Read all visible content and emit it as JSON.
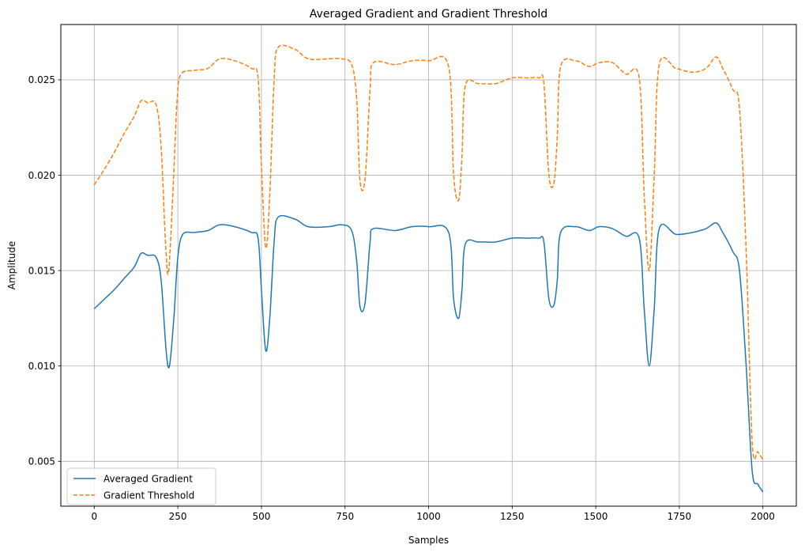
{
  "chart_data": {
    "type": "line",
    "title": "Averaged Gradient and Gradient Threshold",
    "xlabel": "Samples",
    "ylabel": "Amplitude",
    "xlim": [
      -100,
      2100
    ],
    "ylim": [
      0.00265,
      0.0279
    ],
    "xticks": [
      0,
      250,
      500,
      750,
      1000,
      1250,
      1500,
      1750,
      2000
    ],
    "xtick_labels": [
      "0",
      "250",
      "500",
      "750",
      "1000",
      "1250",
      "1500",
      "1750",
      "2000"
    ],
    "yticks": [
      0.005,
      0.01,
      0.015,
      0.02,
      0.025
    ],
    "ytick_labels": [
      "0.005",
      "0.010",
      "0.015",
      "0.020",
      "0.025"
    ],
    "grid": true,
    "legend_position": "lower-left",
    "series": [
      {
        "name": "Averaged Gradient",
        "color": "#1f77b4",
        "style": "solid",
        "points": [
          [
            0,
            0.013
          ],
          [
            30,
            0.0135
          ],
          [
            60,
            0.014
          ],
          [
            90,
            0.0146
          ],
          [
            120,
            0.0152
          ],
          [
            140,
            0.0159
          ],
          [
            160,
            0.0158
          ],
          [
            185,
            0.0157
          ],
          [
            200,
            0.0145
          ],
          [
            215,
            0.0108
          ],
          [
            225,
            0.01
          ],
          [
            238,
            0.0125
          ],
          [
            250,
            0.0157
          ],
          [
            265,
            0.0169
          ],
          [
            300,
            0.017
          ],
          [
            340,
            0.0171
          ],
          [
            375,
            0.0174
          ],
          [
            420,
            0.0173
          ],
          [
            470,
            0.017
          ],
          [
            490,
            0.0167
          ],
          [
            500,
            0.014
          ],
          [
            513,
            0.0108
          ],
          [
            525,
            0.0125
          ],
          [
            538,
            0.0165
          ],
          [
            550,
            0.0178
          ],
          [
            600,
            0.0177
          ],
          [
            640,
            0.0173
          ],
          [
            700,
            0.0173
          ],
          [
            740,
            0.0174
          ],
          [
            770,
            0.0171
          ],
          [
            785,
            0.0155
          ],
          [
            795,
            0.0131
          ],
          [
            810,
            0.0133
          ],
          [
            825,
            0.0165
          ],
          [
            835,
            0.0172
          ],
          [
            900,
            0.0171
          ],
          [
            950,
            0.0173
          ],
          [
            1000,
            0.0173
          ],
          [
            1060,
            0.017
          ],
          [
            1075,
            0.0135
          ],
          [
            1090,
            0.0125
          ],
          [
            1100,
            0.014
          ],
          [
            1110,
            0.0164
          ],
          [
            1150,
            0.0165
          ],
          [
            1200,
            0.0165
          ],
          [
            1250,
            0.0167
          ],
          [
            1300,
            0.0167
          ],
          [
            1330,
            0.0167
          ],
          [
            1345,
            0.0165
          ],
          [
            1360,
            0.0135
          ],
          [
            1375,
            0.0132
          ],
          [
            1385,
            0.0145
          ],
          [
            1395,
            0.017
          ],
          [
            1440,
            0.0173
          ],
          [
            1480,
            0.0171
          ],
          [
            1510,
            0.0173
          ],
          [
            1550,
            0.0172
          ],
          [
            1590,
            0.0168
          ],
          [
            1630,
            0.0167
          ],
          [
            1645,
            0.013
          ],
          [
            1660,
            0.01
          ],
          [
            1675,
            0.013
          ],
          [
            1690,
            0.0172
          ],
          [
            1740,
            0.0169
          ],
          [
            1790,
            0.017
          ],
          [
            1830,
            0.0172
          ],
          [
            1860,
            0.0175
          ],
          [
            1880,
            0.017
          ],
          [
            1910,
            0.016
          ],
          [
            1930,
            0.015
          ],
          [
            1950,
            0.01
          ],
          [
            1968,
            0.0045
          ],
          [
            1985,
            0.0038
          ],
          [
            2000,
            0.0034
          ]
        ]
      },
      {
        "name": "Gradient Threshold",
        "color": "#ff7f0e",
        "style": "dashed",
        "points": [
          [
            0,
            0.0195
          ],
          [
            30,
            0.0203
          ],
          [
            60,
            0.0212
          ],
          [
            90,
            0.0222
          ],
          [
            120,
            0.0231
          ],
          [
            140,
            0.0239
          ],
          [
            160,
            0.0238
          ],
          [
            185,
            0.0237
          ],
          [
            200,
            0.0215
          ],
          [
            213,
            0.0165
          ],
          [
            222,
            0.0149
          ],
          [
            235,
            0.019
          ],
          [
            248,
            0.024
          ],
          [
            260,
            0.0253
          ],
          [
            300,
            0.0255
          ],
          [
            340,
            0.0256
          ],
          [
            375,
            0.0261
          ],
          [
            420,
            0.026
          ],
          [
            470,
            0.0256
          ],
          [
            490,
            0.0251
          ],
          [
            500,
            0.0205
          ],
          [
            513,
            0.0162
          ],
          [
            525,
            0.019
          ],
          [
            538,
            0.025
          ],
          [
            550,
            0.0267
          ],
          [
            600,
            0.0266
          ],
          [
            640,
            0.0261
          ],
          [
            700,
            0.0261
          ],
          [
            740,
            0.0261
          ],
          [
            770,
            0.0258
          ],
          [
            785,
            0.024
          ],
          [
            795,
            0.0197
          ],
          [
            810,
            0.0198
          ],
          [
            825,
            0.0245
          ],
          [
            835,
            0.0259
          ],
          [
            900,
            0.0258
          ],
          [
            950,
            0.026
          ],
          [
            1000,
            0.026
          ],
          [
            1060,
            0.0257
          ],
          [
            1075,
            0.02
          ],
          [
            1090,
            0.0187
          ],
          [
            1100,
            0.021
          ],
          [
            1110,
            0.0247
          ],
          [
            1150,
            0.0248
          ],
          [
            1200,
            0.0248
          ],
          [
            1250,
            0.0251
          ],
          [
            1300,
            0.0251
          ],
          [
            1330,
            0.0251
          ],
          [
            1345,
            0.0248
          ],
          [
            1360,
            0.02
          ],
          [
            1375,
            0.0196
          ],
          [
            1385,
            0.022
          ],
          [
            1395,
            0.0257
          ],
          [
            1440,
            0.026
          ],
          [
            1480,
            0.0257
          ],
          [
            1510,
            0.0259
          ],
          [
            1550,
            0.0259
          ],
          [
            1590,
            0.0253
          ],
          [
            1630,
            0.0251
          ],
          [
            1645,
            0.019
          ],
          [
            1660,
            0.015
          ],
          [
            1675,
            0.02
          ],
          [
            1690,
            0.0258
          ],
          [
            1740,
            0.0256
          ],
          [
            1790,
            0.0254
          ],
          [
            1830,
            0.0256
          ],
          [
            1860,
            0.0262
          ],
          [
            1880,
            0.0256
          ],
          [
            1910,
            0.0245
          ],
          [
            1930,
            0.0235
          ],
          [
            1950,
            0.016
          ],
          [
            1968,
            0.006
          ],
          [
            1985,
            0.0055
          ],
          [
            2000,
            0.0051
          ]
        ]
      }
    ]
  }
}
